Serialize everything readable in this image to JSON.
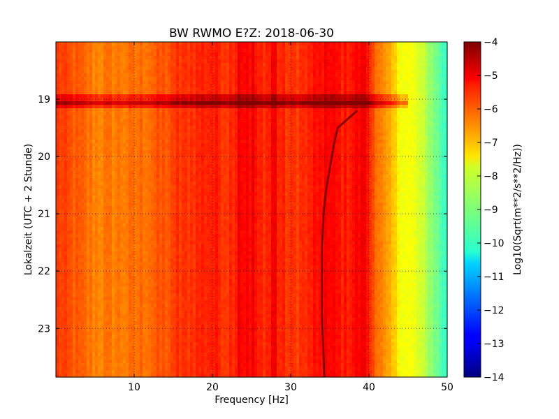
{
  "chart_data": {
    "type": "heatmap",
    "title": "BW RWMO E?Z: 2018-06-30",
    "xlabel": "Frequency [Hz]",
    "ylabel": "Lokalzeit (UTC + 2 Stunde)",
    "xlim": [
      0,
      50
    ],
    "ylim": [
      18.0,
      23.85
    ],
    "y_inverted": true,
    "x_ticks": [
      10,
      20,
      30,
      40,
      50
    ],
    "y_ticks": [
      19,
      20,
      21,
      22,
      23
    ],
    "grid": true,
    "colormap": "jet",
    "colorbar": {
      "label": "Log10(Sqrt(m**2/s**2/Hz))",
      "min": -14,
      "max": -4,
      "ticks": [
        -4,
        -5,
        -6,
        -7,
        -8,
        -9,
        -10,
        -11,
        -12,
        -13,
        -14
      ]
    },
    "baseline_value": -6.5,
    "frequency_profile": [
      {
        "f": 0,
        "v": -5.8
      },
      {
        "f": 5,
        "v": -6.5
      },
      {
        "f": 10,
        "v": -6.4
      },
      {
        "f": 15,
        "v": -6.0
      },
      {
        "f": 17,
        "v": -5.7
      },
      {
        "f": 20,
        "v": -5.5
      },
      {
        "f": 22,
        "v": -5.7
      },
      {
        "f": 24,
        "v": -5.2
      },
      {
        "f": 26,
        "v": -5.6
      },
      {
        "f": 28,
        "v": -5.5
      },
      {
        "f": 30,
        "v": -5.8
      },
      {
        "f": 33,
        "v": -5.6
      },
      {
        "f": 35,
        "v": -5.3
      },
      {
        "f": 37,
        "v": -5.5
      },
      {
        "f": 39,
        "v": -5.2
      },
      {
        "f": 40,
        "v": -5.6
      },
      {
        "f": 41,
        "v": -6.2
      },
      {
        "f": 42,
        "v": -6.8
      },
      {
        "f": 43,
        "v": -7.2
      },
      {
        "f": 44,
        "v": -7.7
      },
      {
        "f": 46,
        "v": -8.0
      },
      {
        "f": 48,
        "v": -8.8
      },
      {
        "f": 50,
        "v": -9.8
      }
    ],
    "features": {
      "vertical_lines_hz": [
        15.5,
        23.5,
        25.2,
        27.8,
        33.0,
        34.4,
        39.5
      ],
      "horizontal_bands_hour": [
        18.95,
        19.02,
        19.1
      ],
      "tremor_track": [
        {
          "t": 19.2,
          "f": 38.5
        },
        {
          "t": 19.5,
          "f": 36.0
        },
        {
          "t": 19.8,
          "f": 35.5
        },
        {
          "t": 20.2,
          "f": 35.0
        },
        {
          "t": 20.6,
          "f": 34.5
        },
        {
          "t": 21.0,
          "f": 34.2
        },
        {
          "t": 21.6,
          "f": 34.0
        },
        {
          "t": 22.2,
          "f": 34.0
        },
        {
          "t": 22.8,
          "f": 34.0
        },
        {
          "t": 23.85,
          "f": 34.3
        }
      ]
    }
  }
}
